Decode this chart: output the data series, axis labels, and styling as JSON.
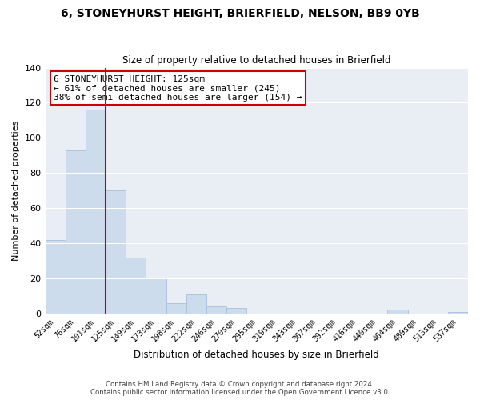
{
  "title": "6, STONEYHURST HEIGHT, BRIERFIELD, NELSON, BB9 0YB",
  "subtitle": "Size of property relative to detached houses in Brierfield",
  "xlabel": "Distribution of detached houses by size in Brierfield",
  "ylabel": "Number of detached properties",
  "bar_color": "#ccdcec",
  "bar_edge_color": "#a8c0d8",
  "vline_color": "#cc0000",
  "categories": [
    "52sqm",
    "76sqm",
    "101sqm",
    "125sqm",
    "149sqm",
    "173sqm",
    "198sqm",
    "222sqm",
    "246sqm",
    "270sqm",
    "295sqm",
    "319sqm",
    "343sqm",
    "367sqm",
    "392sqm",
    "416sqm",
    "440sqm",
    "464sqm",
    "489sqm",
    "513sqm",
    "537sqm"
  ],
  "values": [
    42,
    93,
    116,
    70,
    32,
    20,
    6,
    11,
    4,
    3,
    0,
    0,
    0,
    0,
    0,
    0,
    0,
    2,
    0,
    0,
    1
  ],
  "ylim": [
    0,
    140
  ],
  "yticks": [
    0,
    20,
    40,
    60,
    80,
    100,
    120,
    140
  ],
  "annotation_title": "6 STONEYHURST HEIGHT: 125sqm",
  "annotation_line1": "← 61% of detached houses are smaller (245)",
  "annotation_line2": "38% of semi-detached houses are larger (154) →",
  "annotation_box_color": "#ffffff",
  "annotation_box_edge_color": "#cc0000",
  "footer_line1": "Contains HM Land Registry data © Crown copyright and database right 2024.",
  "footer_line2": "Contains public sector information licensed under the Open Government Licence v3.0.",
  "background_color": "#ffffff",
  "plot_bg_color": "#e8eef4"
}
